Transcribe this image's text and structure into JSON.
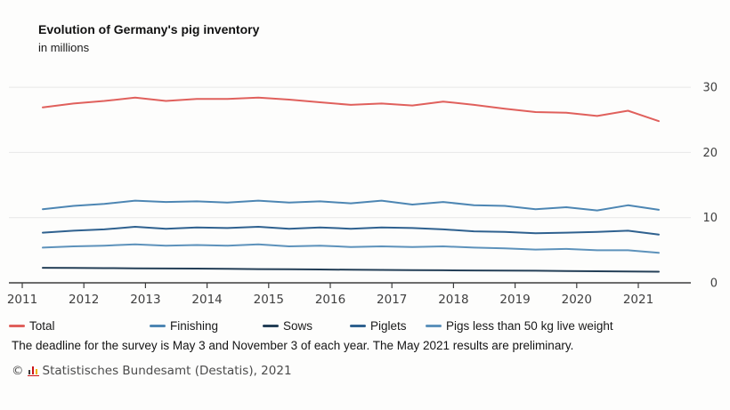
{
  "header": {
    "title": "Evolution of Germany's pig inventory",
    "subtitle": "in millions"
  },
  "chart_data": {
    "type": "line",
    "title": "Evolution of Germany's pig inventory",
    "unit": "millions",
    "grid": "horizontal",
    "legend_position": "bottom",
    "x_axis": {
      "tick_labels": [
        "2011",
        "2012",
        "2013",
        "2014",
        "2015",
        "2016",
        "2017",
        "2018",
        "2019",
        "2020",
        "2021"
      ]
    },
    "y_axis": {
      "tick_labels": [
        0,
        10,
        20,
        30
      ],
      "range": [
        0,
        32
      ],
      "side": "right"
    },
    "categories": [
      "May 2011",
      "Nov 2011",
      "May 2012",
      "Nov 2012",
      "May 2013",
      "Nov 2013",
      "May 2014",
      "Nov 2014",
      "May 2015",
      "Nov 2015",
      "May 2016",
      "Nov 2016",
      "May 2017",
      "Nov 2017",
      "May 2018",
      "Nov 2018",
      "May 2019",
      "Nov 2019",
      "May 2020",
      "Nov 2020",
      "May 2021"
    ],
    "series": [
      {
        "id": "total",
        "name": "Total",
        "color": "#e0605c",
        "values": [
          26.9,
          27.5,
          27.9,
          28.4,
          27.9,
          28.2,
          28.2,
          28.4,
          28.1,
          27.7,
          27.3,
          27.5,
          27.2,
          27.8,
          27.3,
          26.7,
          26.2,
          26.1,
          25.6,
          26.4,
          24.8
        ]
      },
      {
        "id": "finishing",
        "name": "Finishing",
        "color": "#4d86b3",
        "values": [
          11.3,
          11.8,
          12.1,
          12.6,
          12.4,
          12.5,
          12.3,
          12.6,
          12.3,
          12.5,
          12.2,
          12.6,
          12.0,
          12.4,
          11.9,
          11.8,
          11.3,
          11.6,
          11.1,
          11.9,
          11.2
        ]
      },
      {
        "id": "sows",
        "name": "Sows",
        "color": "#243f57",
        "values": [
          2.3,
          2.28,
          2.25,
          2.22,
          2.2,
          2.18,
          2.15,
          2.1,
          2.08,
          2.05,
          2.0,
          1.98,
          1.95,
          1.92,
          1.9,
          1.88,
          1.85,
          1.82,
          1.78,
          1.75,
          1.7
        ]
      },
      {
        "id": "piglets",
        "name": "Piglets",
        "color": "#2f618f",
        "values": [
          7.7,
          8.0,
          8.2,
          8.6,
          8.3,
          8.5,
          8.4,
          8.6,
          8.3,
          8.5,
          8.3,
          8.5,
          8.4,
          8.2,
          7.9,
          7.8,
          7.6,
          7.7,
          7.8,
          8.0,
          7.4
        ]
      },
      {
        "id": "pigs_less_50kg",
        "name": "Pigs less than 50 kg live weight",
        "color": "#5d92bb",
        "values": [
          5.4,
          5.6,
          5.7,
          5.9,
          5.7,
          5.8,
          5.7,
          5.9,
          5.6,
          5.7,
          5.5,
          5.6,
          5.5,
          5.6,
          5.4,
          5.3,
          5.1,
          5.2,
          5.0,
          5.0,
          4.6
        ]
      }
    ]
  },
  "notes": {
    "footnote": "The deadline for the survey is May 3 and November 3 of each year. The May 2021 results are preliminary.",
    "source_copyright": "©",
    "source_text": "Statistisches Bundesamt (Destatis), 2021"
  },
  "colors": {
    "grid": "#e7e7e7",
    "axis": "#3d3d3d",
    "tick_label": "#3f3f3f",
    "background": "#fdfdfc"
  }
}
